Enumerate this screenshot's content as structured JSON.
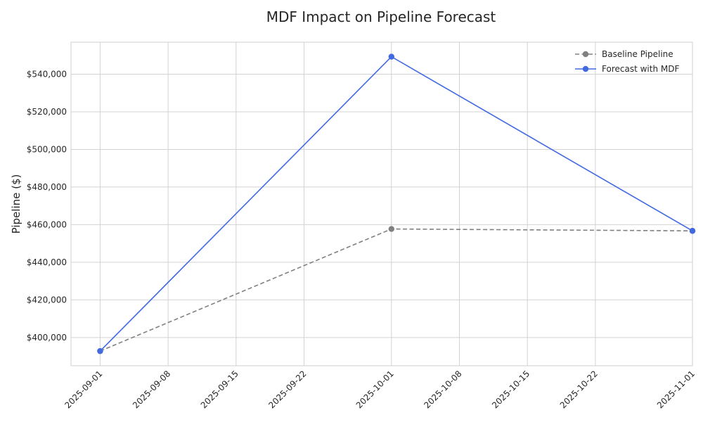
{
  "chart_data": {
    "type": "line",
    "title": "MDF Impact on Pipeline Forecast",
    "xlabel": "",
    "ylabel": "Pipeline ($)",
    "x": [
      "2025-09-01",
      "2025-10-01",
      "2025-11-01"
    ],
    "x_ticks": [
      "2025-09-01",
      "2025-09-08",
      "2025-09-15",
      "2025-09-22",
      "2025-10-01",
      "2025-10-08",
      "2025-10-15",
      "2025-10-22",
      "2025-11-01"
    ],
    "y_ticks": [
      400000,
      420000,
      440000,
      460000,
      480000,
      500000,
      520000,
      540000
    ],
    "y_tick_labels": [
      "$400,000",
      "$420,000",
      "$440,000",
      "$460,000",
      "$480,000",
      "$500,000",
      "$520,000",
      "$540,000"
    ],
    "xlim": [
      "2025-08-29",
      "2025-11-01"
    ],
    "ylim": [
      385000,
      557000
    ],
    "grid": true,
    "legend_position": "top-right",
    "series": [
      {
        "name": "Baseline Pipeline",
        "values": [
          392800,
          457700,
          456700
        ],
        "color": "#808080",
        "style": "dashed"
      },
      {
        "name": "Forecast with MDF",
        "values": [
          392800,
          549300,
          456700
        ],
        "color": "#4169e1",
        "style": "solid"
      }
    ]
  }
}
